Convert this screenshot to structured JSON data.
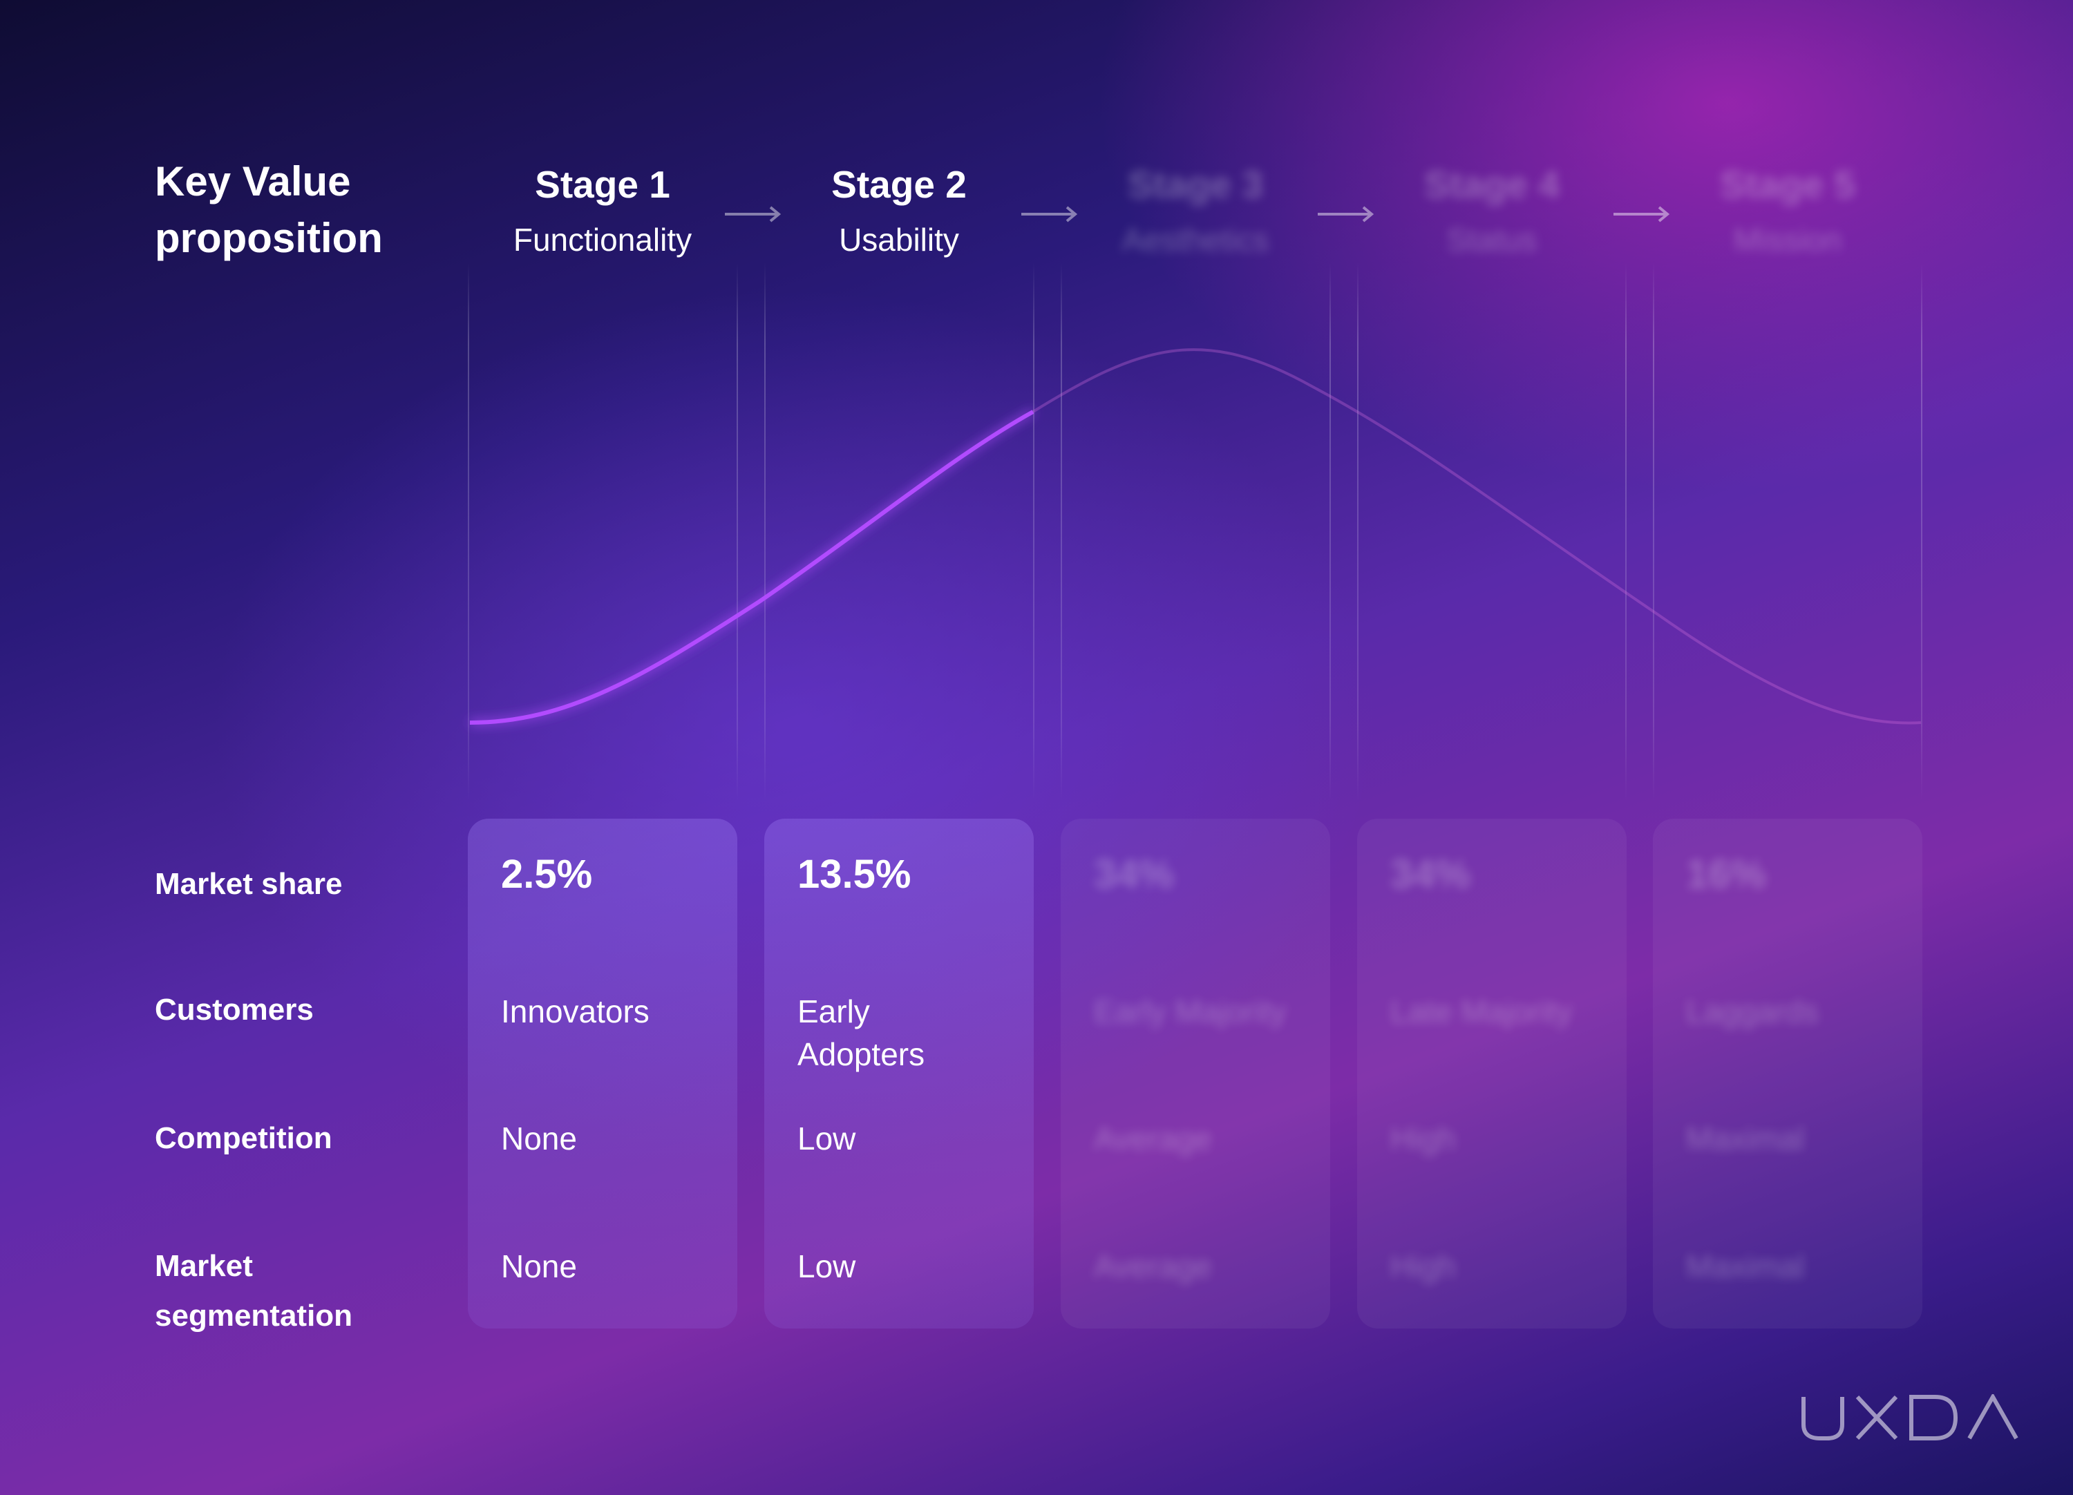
{
  "header": {
    "title_line1": "Key Value",
    "title_line2": "proposition"
  },
  "stages": [
    {
      "name": "Stage 1",
      "value": "Functionality",
      "market_share": "2.5%",
      "customers": "Innovators",
      "competition": "None",
      "segmentation": "None"
    },
    {
      "name": "Stage 2",
      "value": "Usability",
      "market_share": "13.5%",
      "customers": "Early Adopters",
      "competition": "Low",
      "segmentation": "Low"
    },
    {
      "name": "Stage 3",
      "value": "Aesthetics",
      "market_share": "34%",
      "customers": "Early Majority",
      "competition": "Average",
      "segmentation": "Average"
    },
    {
      "name": "Stage 4",
      "value": "Status",
      "market_share": "34%",
      "customers": "Late Majority",
      "competition": "High",
      "segmentation": "High"
    },
    {
      "name": "Stage 5",
      "value": "Mission",
      "market_share": "16%",
      "customers": "Laggards",
      "competition": "Maximal",
      "segmentation": "Maximal"
    }
  ],
  "rows": {
    "market_share": "Market share",
    "customers": "Customers",
    "competition": "Competition",
    "segmentation_line1": "Market",
    "segmentation_line2": "segmentation"
  },
  "logo": {
    "text": "UXDA"
  },
  "colors": {
    "curve_active": "#b24cff",
    "curve_faded": "#c86ad8"
  }
}
